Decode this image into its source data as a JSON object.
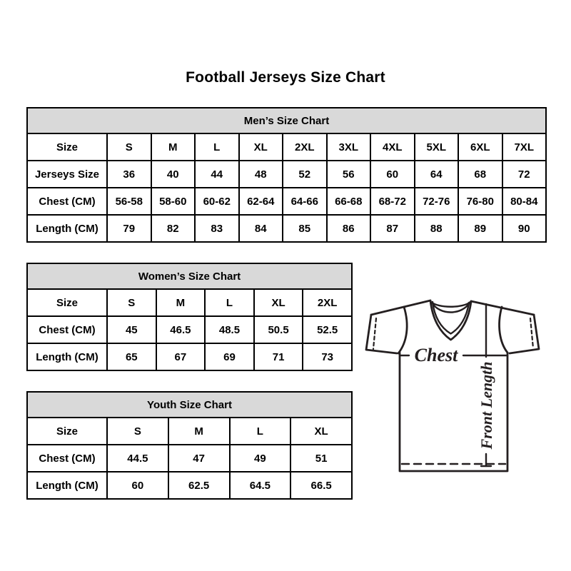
{
  "page": {
    "title": "Football Jerseys Size Chart"
  },
  "colors": {
    "table_header_bg": "#d9d9d9",
    "table_border": "#000000",
    "text": "#000000",
    "jersey_line": "#241f20"
  },
  "tables": [
    {
      "name": "mens-size-chart",
      "title": "Men’s Size Chart",
      "rows": [
        {
          "label": "Size",
          "values": [
            "S",
            "M",
            "L",
            "XL",
            "2XL",
            "3XL",
            "4XL",
            "5XL",
            "6XL",
            "7XL"
          ]
        },
        {
          "label": "Jerseys Size",
          "values": [
            "36",
            "40",
            "44",
            "48",
            "52",
            "56",
            "60",
            "64",
            "68",
            "72"
          ]
        },
        {
          "label": "Chest (CM)",
          "values": [
            "56-58",
            "58-60",
            "60-62",
            "62-64",
            "64-66",
            "66-68",
            "68-72",
            "72-76",
            "76-80",
            "80-84"
          ]
        },
        {
          "label": "Length (CM)",
          "values": [
            "79",
            "82",
            "83",
            "84",
            "85",
            "86",
            "87",
            "88",
            "89",
            "90"
          ]
        }
      ]
    },
    {
      "name": "womens-size-chart",
      "title": "Women’s Size Chart",
      "rows": [
        {
          "label": "Size",
          "values": [
            "S",
            "M",
            "L",
            "XL",
            "2XL"
          ]
        },
        {
          "label": "Chest (CM)",
          "values": [
            "45",
            "46.5",
            "48.5",
            "50.5",
            "52.5"
          ]
        },
        {
          "label": "Length (CM)",
          "values": [
            "65",
            "67",
            "69",
            "71",
            "73"
          ]
        }
      ]
    },
    {
      "name": "youth-size-chart",
      "title": "Youth Size Chart",
      "rows": [
        {
          "label": "Size",
          "values": [
            "S",
            "M",
            "L",
            "XL"
          ]
        },
        {
          "label": "Chest (CM)",
          "values": [
            "44.5",
            "47",
            "49",
            "51"
          ]
        },
        {
          "label": "Length (CM)",
          "values": [
            "60",
            "62.5",
            "64.5",
            "66.5"
          ]
        }
      ]
    }
  ],
  "diagram": {
    "chest_label": "Chest",
    "front_length_label": "Front Length"
  }
}
